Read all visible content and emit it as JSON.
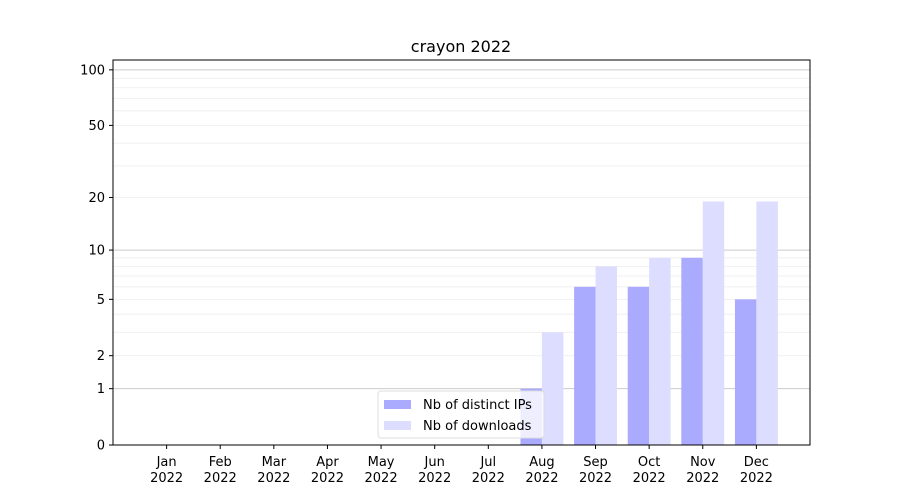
{
  "chart_data": {
    "type": "bar",
    "title": "crayon 2022",
    "xlabel": "",
    "ylabel": "",
    "yscale": "log(1+y)",
    "ylim": [
      0,
      113
    ],
    "yticks": [
      0,
      1,
      2,
      5,
      10,
      20,
      50,
      100
    ],
    "grid": true,
    "legend_position": "lower-center",
    "categories": [
      "Jan\n2022",
      "Feb\n2022",
      "Mar\n2022",
      "Apr\n2022",
      "May\n2022",
      "Jun\n2022",
      "Jul\n2022",
      "Aug\n2022",
      "Sep\n2022",
      "Oct\n2022",
      "Nov\n2022",
      "Dec\n2022"
    ],
    "series": [
      {
        "name": "Nb of distinct IPs",
        "color": "#aaaaff",
        "values": [
          0,
          0,
          0,
          0,
          0,
          0,
          0,
          1,
          6,
          6,
          9,
          5
        ]
      },
      {
        "name": "Nb of downloads",
        "color": "#ddddff",
        "values": [
          0,
          0,
          0,
          0,
          0,
          0,
          0,
          3,
          8,
          9,
          19,
          19
        ]
      }
    ]
  }
}
